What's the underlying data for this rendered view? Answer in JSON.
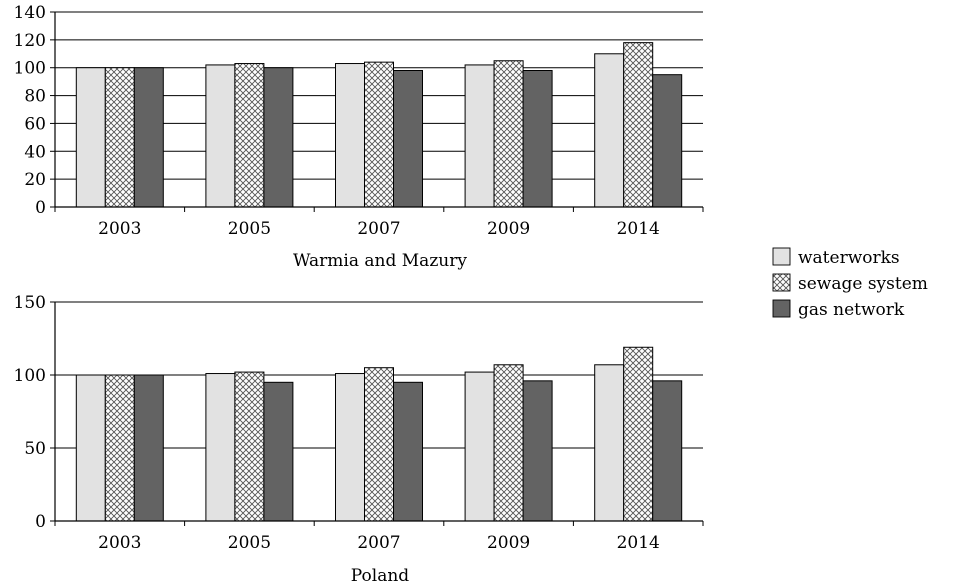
{
  "colors": {
    "waterworks": "#e2e2e2",
    "sewage_system": "#ffffff",
    "gas_network": "#636363",
    "axis": "#000000"
  },
  "legend": {
    "items": [
      {
        "label": "waterworks",
        "pattern": "solid-light"
      },
      {
        "label": "sewage system",
        "pattern": "crosshatch"
      },
      {
        "label": "gas network",
        "pattern": "solid-dark"
      }
    ]
  },
  "chart_data": [
    {
      "type": "bar",
      "title": "",
      "xlabel": "Warmia and Mazury",
      "ylabel": "",
      "categories": [
        "2003",
        "2005",
        "2007",
        "2009",
        "2014"
      ],
      "ylim": [
        0,
        140
      ],
      "yticks": [
        0,
        20,
        40,
        60,
        80,
        100,
        120,
        140
      ],
      "grid": true,
      "series": [
        {
          "name": "waterworks",
          "values": [
            100,
            102,
            103,
            102,
            110
          ]
        },
        {
          "name": "sewage system",
          "values": [
            100,
            103,
            104,
            105,
            118
          ]
        },
        {
          "name": "gas network",
          "values": [
            100,
            100,
            98,
            98,
            95
          ]
        }
      ]
    },
    {
      "type": "bar",
      "title": "",
      "xlabel": "Poland",
      "ylabel": "",
      "categories": [
        "2003",
        "2005",
        "2007",
        "2009",
        "2014"
      ],
      "ylim": [
        0,
        150
      ],
      "yticks": [
        0,
        50,
        100,
        150
      ],
      "grid": true,
      "series": [
        {
          "name": "waterworks",
          "values": [
            100,
            101,
            101,
            102,
            107
          ]
        },
        {
          "name": "sewage system",
          "values": [
            100,
            102,
            105,
            107,
            119
          ]
        },
        {
          "name": "gas network",
          "values": [
            100,
            95,
            95,
            96,
            96
          ]
        }
      ]
    }
  ]
}
